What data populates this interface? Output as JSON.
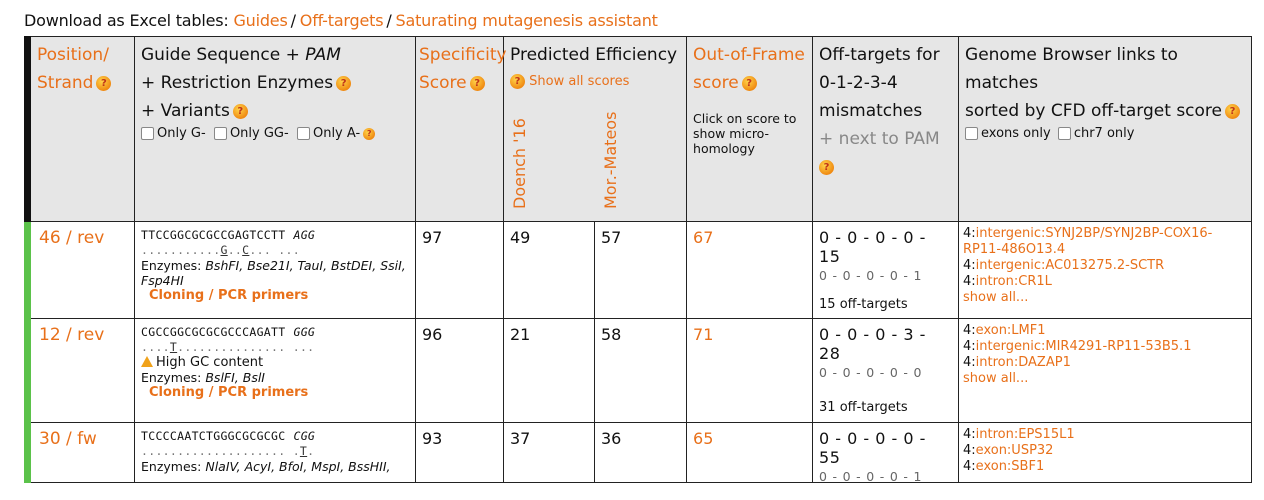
{
  "download": {
    "label": "Download as Excel tables:",
    "links": [
      "Guides",
      "Off-targets",
      "Saturating mutagenesis assistant"
    ]
  },
  "header": {
    "position": [
      "Position/",
      "Strand"
    ],
    "guide_line1": "Guide Sequence + ",
    "guide_pam": "PAM",
    "guide_line2": "+ Restriction Enzymes",
    "guide_line3": "+ Variants",
    "guide_filters": [
      "Only G-",
      "Only GG-",
      "Only A-"
    ],
    "specificity": [
      "Specificity",
      "Score"
    ],
    "efficiency": "Predicted Efficiency",
    "show_all_scores": "Show all scores",
    "doench": "Doench '16",
    "mor_mateos": "Mor.-Mateos",
    "oof": [
      "Out-of-Frame",
      "score"
    ],
    "oof_note": "Click on score to show micro-homology",
    "offtargets": [
      "Off-targets for",
      "0-1-2-3-4",
      "mismatches"
    ],
    "next_to_pam": "+ next to PAM",
    "browser": [
      "Genome Browser links to matches",
      "sorted by CFD off-target score"
    ],
    "browser_filters": [
      "exons only",
      "chr7 only"
    ]
  },
  "rows": [
    {
      "position": "46 / rev",
      "sequence": "TTCCGGCGCGCCGAGTCCTT",
      "pam": "AGG",
      "variants_pre": "...........",
      "variants_mid1": "G",
      "variants_mid2": "..",
      "variants_mid3": "C",
      "variants_post": "...   ...",
      "warning": "",
      "enzymes_label": "Enzymes:",
      "enzymes": "BshFI, Bse21I, TauI, BstDEI, SsiI, Fsp4HI",
      "cloning": "Cloning / PCR primers",
      "specificity": "97",
      "doench": "49",
      "mor_mateos": "57",
      "oof": "67",
      "offtargets_main": "0 - 0 - 0 - 0 - 15",
      "offtargets_sub": "0 - 0 - 0 - 0 - 1",
      "offtargets_count": "15 off-targets",
      "browser": [
        {
          "chr": "4:",
          "label": "intergenic:SYNJ2BP/SYNJ2BP-COX16-RP11-486O13.4"
        },
        {
          "chr": "4:",
          "label": "intergenic:AC013275.2-SCTR"
        },
        {
          "chr": "4:",
          "label": "intron:CR1L"
        }
      ],
      "show_all": "show all..."
    },
    {
      "position": "12 / rev",
      "sequence": "CGCCGGCGCGCGCCCAGATT",
      "pam": "GGG",
      "variants_pre": "....",
      "variants_mid1": "T",
      "variants_mid2": "",
      "variants_mid3": "",
      "variants_post": "...............   ...",
      "warning": "High GC content",
      "enzymes_label": "Enzymes:",
      "enzymes": "BslFI, BslI",
      "cloning": "Cloning / PCR primers",
      "specificity": "96",
      "doench": "21",
      "mor_mateos": "58",
      "oof": "71",
      "offtargets_main": "0 - 0 - 0 - 3 - 28",
      "offtargets_sub": "0 - 0 - 0 - 0 - 0",
      "offtargets_count": "31 off-targets",
      "browser": [
        {
          "chr": "4:",
          "label": "exon:LMF1"
        },
        {
          "chr": "4:",
          "label": "intergenic:MIR4291-RP11-53B5.1"
        },
        {
          "chr": "4:",
          "label": "intron:DAZAP1"
        }
      ],
      "show_all": "show all..."
    },
    {
      "position": "30 / fw",
      "sequence": "TCCCCAATCTGGGCGCGCGC",
      "pam": "CGG",
      "variants_pre": "....................   .",
      "variants_mid1": "T",
      "variants_mid2": "",
      "variants_mid3": "",
      "variants_post": ".",
      "warning": "",
      "enzymes_label": "Enzymes:",
      "enzymes": "NlaIV, AcyI, BfoI, MspI, BssHII,",
      "cloning": "",
      "specificity": "93",
      "doench": "37",
      "mor_mateos": "36",
      "oof": "65",
      "offtargets_main": "0 - 0 - 0 - 0 - 55",
      "offtargets_sub": "0 - 0 - 0 - 0 - 1",
      "offtargets_count": "",
      "browser": [
        {
          "chr": "4:",
          "label": "intron:EPS15L1"
        },
        {
          "chr": "4:",
          "label": "exon:USP32"
        },
        {
          "chr": "4:",
          "label": "exon:SBF1"
        }
      ],
      "show_all": ""
    }
  ],
  "colors": {
    "accent": "#e8701a",
    "ok_bar": "#5bc24a",
    "header_bg": "#e6e6e6"
  },
  "icons": [
    "help-icon",
    "warning-icon",
    "checkbox"
  ]
}
